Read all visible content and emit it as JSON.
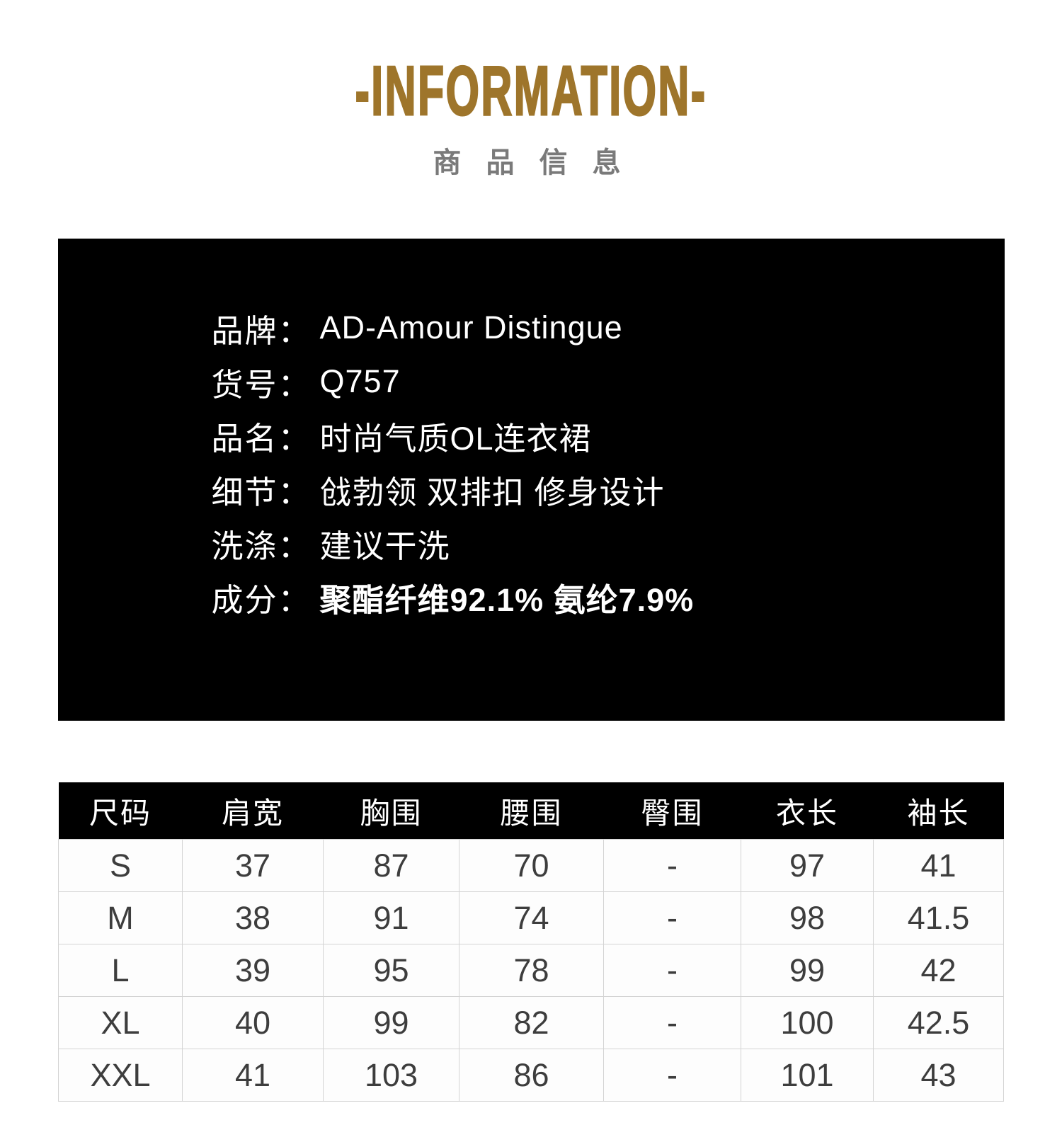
{
  "page": {
    "background": "#ffffff"
  },
  "header": {
    "title": "-INFORMATION-",
    "title_color": "#9e752b",
    "subtitle": "商 品 信 息",
    "subtitle_color": "#7a7a7a"
  },
  "info_panel": {
    "background": "#000000",
    "text_color": "#ffffff",
    "rows": [
      {
        "label": "品牌：",
        "value": "AD-Amour Distingue"
      },
      {
        "label": "货号：",
        "value": "Q757"
      },
      {
        "label": "品名：",
        "value": "时尚气质OL连衣裙"
      },
      {
        "label": "细节：",
        "value": "戗勃领 双排扣 修身设计"
      },
      {
        "label": "洗涤：",
        "value": "建议干洗"
      },
      {
        "label": "成分：",
        "value": "聚酯纤维92.1% 氨纶7.9%"
      }
    ]
  },
  "size_table": {
    "header_background": "#000000",
    "header_text_color": "#ffffff",
    "body_text_color": "#3d3d3d",
    "border_color": "#d4d4d4",
    "columns": [
      "尺码",
      "肩宽",
      "胸围",
      "腰围",
      "臀围",
      "衣长",
      "袖长"
    ],
    "rows": [
      [
        "S",
        "37",
        "87",
        "70",
        "-",
        "97",
        "41"
      ],
      [
        "M",
        "38",
        "91",
        "74",
        "-",
        "98",
        "41.5"
      ],
      [
        "L",
        "39",
        "95",
        "78",
        "-",
        "99",
        "42"
      ],
      [
        "XL",
        "40",
        "99",
        "82",
        "-",
        "100",
        "42.5"
      ],
      [
        "XXL",
        "41",
        "103",
        "86",
        "-",
        "101",
        "43"
      ]
    ]
  }
}
